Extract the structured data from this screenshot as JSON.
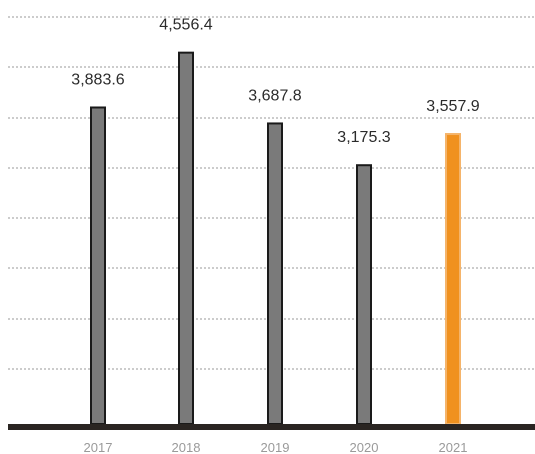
{
  "chart_data": {
    "type": "bar",
    "categories": [
      "2017",
      "2018",
      "2019",
      "2020",
      "2021"
    ],
    "values": [
      3883.6,
      4556.4,
      3687.8,
      3175.3,
      3557.9
    ],
    "value_labels": [
      "3,883.6",
      "4,556.4",
      "3,687.8",
      "3,175.3",
      "3,557.9"
    ],
    "highlight_index": 4,
    "colors": {
      "bar": "#7a7a7a",
      "bar_outline": "#1a1a1a",
      "highlight": "#f0911f",
      "highlight_outline": "#f5b46a",
      "grid": "#9a9a9a",
      "axis": "#2a2522",
      "tick_text": "#9a9a9a",
      "highlight_text": "#f0911f"
    },
    "ylim": [
      0,
      5000
    ],
    "grid": true,
    "title": "",
    "xlabel": "",
    "ylabel": ""
  }
}
